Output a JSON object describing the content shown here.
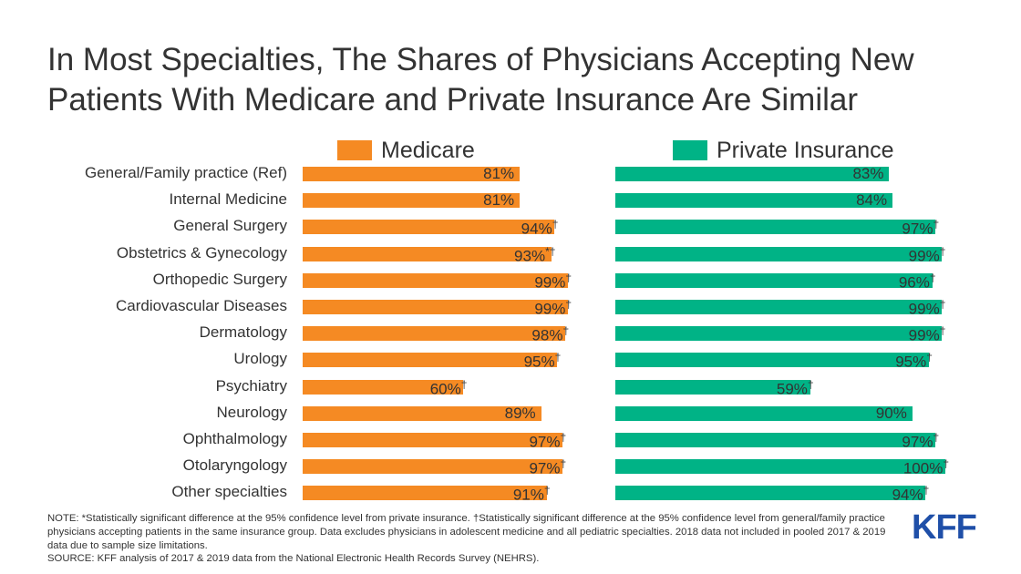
{
  "chart_data": {
    "type": "bar",
    "title": "In Most Specialties, The Shares of Physicians Accepting New Patients With Medicare and Private Insurance Are Similar",
    "categories": [
      "General/Family practice (Ref)",
      "Internal Medicine",
      "General Surgery",
      "Obstetrics & Gynecology",
      "Orthopedic Surgery",
      "Cardiovascular Diseases",
      "Dermatology",
      "Urology",
      "Psychiatry",
      "Neurology",
      "Ophthalmology",
      "Otolaryngology",
      "Other specialties"
    ],
    "series": [
      {
        "name": "Medicare",
        "color": "#f58a23",
        "values": [
          81,
          81,
          94,
          93,
          99,
          99,
          98,
          95,
          60,
          89,
          97,
          97,
          91
        ],
        "markers": [
          "",
          "",
          "†",
          "*†",
          "†",
          "†",
          "†",
          "†",
          "†",
          "",
          "†",
          "†",
          "†"
        ]
      },
      {
        "name": "Private Insurance",
        "color": "#00b386",
        "values": [
          83,
          84,
          97,
          99,
          96,
          99,
          99,
          95,
          59,
          90,
          97,
          100,
          94
        ],
        "markers": [
          "",
          "",
          "†",
          "†",
          "†",
          "†",
          "†",
          "†",
          "†",
          "",
          "†",
          "†",
          "†"
        ]
      }
    ],
    "unit": "%",
    "legend": "top",
    "grid": false
  },
  "note": "NOTE: *Statistically significant difference at the 95% confidence level from private insurance. †Statistically significant difference at the 95% confidence level from general/family practice physicians accepting patients in the same insurance group.  Data excludes physicians in adolescent medicine and all pediatric specialties. 2018 data not included in pooled 2017 & 2019 data due to sample size limitations.",
  "source": "SOURCE:  KFF analysis of 2017 & 2019 data from the National Electronic Health Records Survey (NEHRS).",
  "logo": "KFF"
}
